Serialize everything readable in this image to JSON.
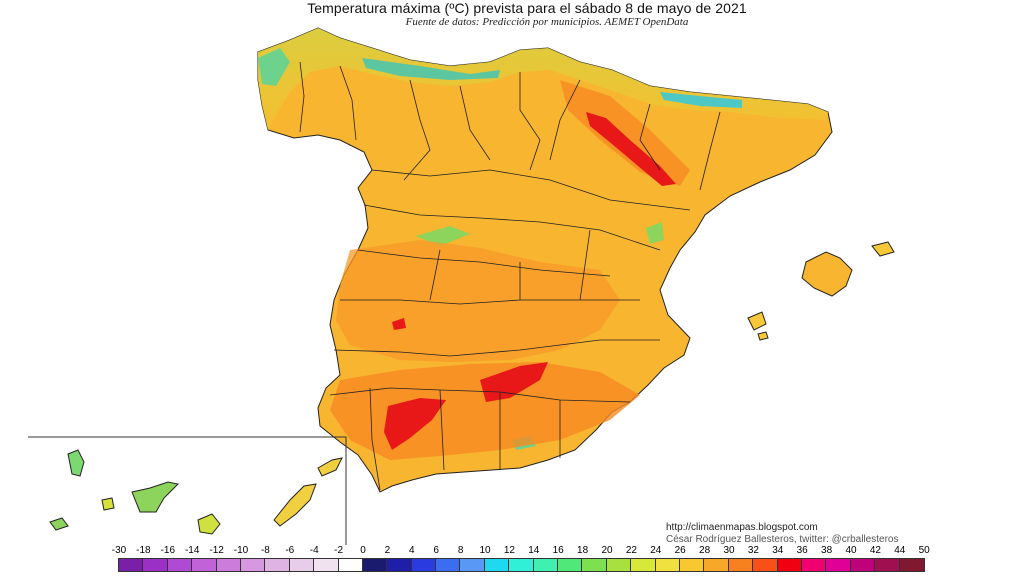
{
  "header": {
    "title": "Temperatura máxima (ºC) prevista para el sábado 8 de mayo de 2021",
    "subtitle": "Fuente de datos: Predicción por municipios. AEMET OpenData"
  },
  "credits": {
    "website": "http://climaenmapas.blogspot.com",
    "author": "César Rodríguez Ballesteros, twitter: @crballesteros"
  },
  "legend": {
    "labels": [
      "-30",
      "-18",
      "-16",
      "-14",
      "-12",
      "-10",
      "-8",
      "-6",
      "-4",
      "-2",
      "0",
      "2",
      "4",
      "6",
      "8",
      "10",
      "12",
      "14",
      "16",
      "18",
      "20",
      "22",
      "24",
      "26",
      "28",
      "30",
      "32",
      "34",
      "36",
      "38",
      "40",
      "42",
      "44",
      "50"
    ],
    "colors": [
      "#7a1fa8",
      "#9b30c6",
      "#b04ad2",
      "#c162d8",
      "#cc7ddc",
      "#d699e0",
      "#dfb3e4",
      "#e8cce9",
      "#f1e2f0",
      "#ffffff",
      "#1a1a6e",
      "#1e1ea8",
      "#2a3be0",
      "#3c6cf0",
      "#5a98f5",
      "#20d8f0",
      "#30f0d8",
      "#40f0b0",
      "#50e878",
      "#7ce050",
      "#a8e040",
      "#d8e838",
      "#f0e040",
      "#f8c830",
      "#f8a828",
      "#f88020",
      "#f85018",
      "#f00010",
      "#f00070",
      "#e00098",
      "#c0007a",
      "#a01050",
      "#801830"
    ]
  },
  "map": {
    "regions": [
      "peninsula",
      "baleares",
      "canarias"
    ],
    "hotspot_color": "#e81818",
    "base_color": "#f8b530",
    "cool_color": "#9ad23c"
  }
}
